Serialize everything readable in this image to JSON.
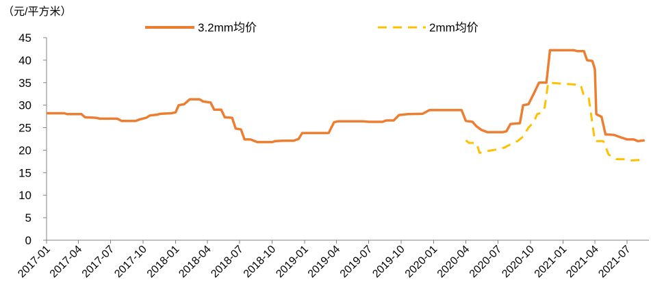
{
  "chart_data": {
    "type": "line",
    "unit_label": "（元/平方米）",
    "ylim": [
      0,
      45
    ],
    "y_ticks": [
      0,
      5,
      10,
      15,
      20,
      25,
      30,
      35,
      40,
      45
    ],
    "x_tick_labels": [
      "2017-01",
      "2017-04",
      "2017-07",
      "2017-10",
      "2018-01",
      "2018-04",
      "2018-07",
      "2018-10",
      "2019-01",
      "2019-04",
      "2019-07",
      "2019-10",
      "2020-01",
      "2020-04",
      "2020-07",
      "2020-10",
      "2021-01",
      "2021-04",
      "2021-07"
    ],
    "grid": false,
    "legend_position": "top",
    "series": [
      {
        "name": "3.2mm均价",
        "color": "#ED7D31",
        "style": "solid",
        "points": [
          [
            "2017-01-01",
            28.2
          ],
          [
            "2017-02-20",
            28.2
          ],
          [
            "2017-03-01",
            28.0
          ],
          [
            "2017-04-10",
            28.0
          ],
          [
            "2017-04-20",
            27.3
          ],
          [
            "2017-05-20",
            27.2
          ],
          [
            "2017-06-01",
            27.0
          ],
          [
            "2017-07-20",
            27.0
          ],
          [
            "2017-08-01",
            26.5
          ],
          [
            "2017-09-10",
            26.5
          ],
          [
            "2017-09-20",
            26.8
          ],
          [
            "2017-10-10",
            27.2
          ],
          [
            "2017-10-20",
            27.7
          ],
          [
            "2017-11-10",
            27.9
          ],
          [
            "2017-11-20",
            28.1
          ],
          [
            "2017-12-20",
            28.2
          ],
          [
            "2018-01-01",
            28.4
          ],
          [
            "2018-01-10",
            30.0
          ],
          [
            "2018-01-25",
            30.2
          ],
          [
            "2018-02-10",
            31.3
          ],
          [
            "2018-03-10",
            31.3
          ],
          [
            "2018-03-20",
            30.8
          ],
          [
            "2018-04-10",
            30.6
          ],
          [
            "2018-04-20",
            29.0
          ],
          [
            "2018-05-10",
            29.0
          ],
          [
            "2018-05-20",
            27.3
          ],
          [
            "2018-06-10",
            27.2
          ],
          [
            "2018-06-20",
            24.8
          ],
          [
            "2018-07-05",
            24.6
          ],
          [
            "2018-07-15",
            22.4
          ],
          [
            "2018-08-01",
            22.4
          ],
          [
            "2018-08-20",
            21.8
          ],
          [
            "2018-10-01",
            21.8
          ],
          [
            "2018-10-10",
            22.0
          ],
          [
            "2018-11-01",
            22.1
          ],
          [
            "2018-12-01",
            22.1
          ],
          [
            "2018-12-15",
            22.5
          ],
          [
            "2018-12-25",
            23.8
          ],
          [
            "2019-03-10",
            23.8
          ],
          [
            "2019-03-25",
            26.2
          ],
          [
            "2019-04-05",
            26.4
          ],
          [
            "2019-05-01",
            26.4
          ],
          [
            "2019-06-15",
            26.4
          ],
          [
            "2019-07-01",
            26.3
          ],
          [
            "2019-08-10",
            26.3
          ],
          [
            "2019-08-20",
            26.6
          ],
          [
            "2019-09-10",
            26.6
          ],
          [
            "2019-09-25",
            27.8
          ],
          [
            "2019-10-20",
            28.0
          ],
          [
            "2019-12-01",
            28.1
          ],
          [
            "2019-12-20",
            28.9
          ],
          [
            "2020-03-20",
            28.9
          ],
          [
            "2020-04-01",
            26.5
          ],
          [
            "2020-04-20",
            26.3
          ],
          [
            "2020-05-01",
            25.3
          ],
          [
            "2020-05-15",
            24.5
          ],
          [
            "2020-06-01",
            24.0
          ],
          [
            "2020-07-15",
            24.0
          ],
          [
            "2020-07-25",
            24.2
          ],
          [
            "2020-08-05",
            25.8
          ],
          [
            "2020-09-01",
            26.0
          ],
          [
            "2020-09-10",
            30.0
          ],
          [
            "2020-09-25",
            30.2
          ],
          [
            "2020-10-10",
            32.5
          ],
          [
            "2020-10-25",
            35.0
          ],
          [
            "2020-11-15",
            35.0
          ],
          [
            "2020-11-25",
            42.2
          ],
          [
            "2021-02-01",
            42.2
          ],
          [
            "2021-02-10",
            42.0
          ],
          [
            "2021-03-01",
            42.0
          ],
          [
            "2021-03-10",
            40.0
          ],
          [
            "2021-03-25",
            39.8
          ],
          [
            "2021-04-01",
            38.0
          ],
          [
            "2021-04-05",
            28.0
          ],
          [
            "2021-04-20",
            27.4
          ],
          [
            "2021-05-01",
            23.5
          ],
          [
            "2021-05-25",
            23.4
          ],
          [
            "2021-06-15",
            22.8
          ],
          [
            "2021-07-01",
            22.4
          ],
          [
            "2021-07-20",
            22.4
          ],
          [
            "2021-08-01",
            22.0
          ],
          [
            "2021-08-20",
            22.2
          ]
        ]
      },
      {
        "name": "2mm均价",
        "color": "#FFC000",
        "style": "dashed",
        "points": [
          [
            "2020-04-01",
            22.2
          ],
          [
            "2020-04-10",
            21.6
          ],
          [
            "2020-05-01",
            21.6
          ],
          [
            "2020-05-10",
            19.4
          ],
          [
            "2020-06-01",
            19.8
          ],
          [
            "2020-07-01",
            20.2
          ],
          [
            "2020-07-20",
            20.6
          ],
          [
            "2020-08-10",
            21.5
          ],
          [
            "2020-08-25",
            22.0
          ],
          [
            "2020-09-10",
            23.0
          ],
          [
            "2020-09-25",
            25.0
          ],
          [
            "2020-10-10",
            26.2
          ],
          [
            "2020-10-20",
            28.0
          ],
          [
            "2020-11-01",
            28.3
          ],
          [
            "2020-11-10",
            29.5
          ],
          [
            "2020-11-20",
            35.0
          ],
          [
            "2021-02-01",
            34.6
          ],
          [
            "2021-02-20",
            34.5
          ],
          [
            "2021-03-01",
            32.0
          ],
          [
            "2021-03-15",
            31.5
          ],
          [
            "2021-04-01",
            22.0
          ],
          [
            "2021-04-25",
            22.0
          ],
          [
            "2021-05-10",
            19.0
          ],
          [
            "2021-06-01",
            18.0
          ],
          [
            "2021-07-01",
            18.0
          ],
          [
            "2021-07-10",
            17.7
          ],
          [
            "2021-08-01",
            17.8
          ],
          [
            "2021-08-20",
            17.9
          ]
        ]
      }
    ]
  }
}
